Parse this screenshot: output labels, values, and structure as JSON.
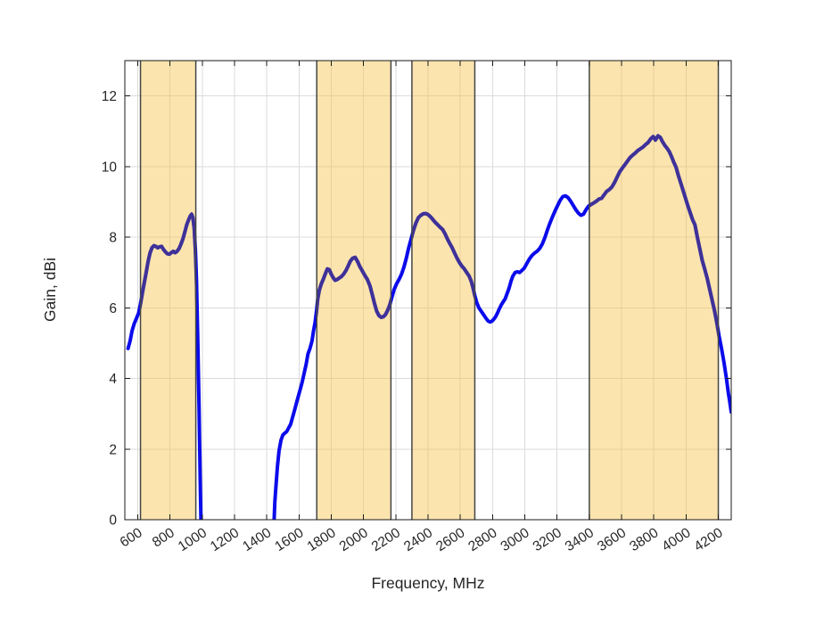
{
  "chart_data": {
    "type": "line",
    "title": "",
    "xlabel": "Frequency, MHz",
    "ylabel": "Gain, dBi",
    "xlim": [
      520,
      4280
    ],
    "ylim": [
      0,
      13
    ],
    "xticks": [
      600,
      800,
      1000,
      1200,
      1400,
      1600,
      1800,
      2000,
      2200,
      2400,
      2600,
      2800,
      3000,
      3200,
      3400,
      3600,
      3800,
      4000,
      4200
    ],
    "yticks": [
      0,
      2,
      4,
      6,
      8,
      10,
      12
    ],
    "grid": true,
    "legend": "none",
    "xtick_angle_deg": -33,
    "bands": [
      {
        "name": "band-617-960",
        "from": 617,
        "to": 960
      },
      {
        "name": "band-1710-2170",
        "from": 1710,
        "to": 2170
      },
      {
        "name": "band-2300-2690",
        "from": 2300,
        "to": 2690
      },
      {
        "name": "band-3400-4200",
        "from": 3400,
        "to": 4200
      }
    ],
    "series": [
      {
        "name": "gain",
        "points": [
          [
            540,
            4.85
          ],
          [
            552,
            5.05
          ],
          [
            565,
            5.35
          ],
          [
            578,
            5.55
          ],
          [
            592,
            5.7
          ],
          [
            605,
            5.85
          ],
          [
            617,
            6.1
          ],
          [
            628,
            6.4
          ],
          [
            640,
            6.7
          ],
          [
            652,
            7.0
          ],
          [
            664,
            7.3
          ],
          [
            676,
            7.55
          ],
          [
            688,
            7.7
          ],
          [
            700,
            7.76
          ],
          [
            712,
            7.74
          ],
          [
            724,
            7.7
          ],
          [
            736,
            7.73
          ],
          [
            748,
            7.74
          ],
          [
            760,
            7.65
          ],
          [
            772,
            7.58
          ],
          [
            784,
            7.53
          ],
          [
            796,
            7.52
          ],
          [
            808,
            7.56
          ],
          [
            820,
            7.6
          ],
          [
            832,
            7.56
          ],
          [
            844,
            7.6
          ],
          [
            856,
            7.68
          ],
          [
            868,
            7.8
          ],
          [
            880,
            7.95
          ],
          [
            892,
            8.15
          ],
          [
            904,
            8.35
          ],
          [
            916,
            8.5
          ],
          [
            926,
            8.6
          ],
          [
            934,
            8.65
          ],
          [
            942,
            8.55
          ],
          [
            950,
            8.25
          ],
          [
            958,
            7.6
          ],
          [
            964,
            6.8
          ],
          [
            972,
            5.2
          ],
          [
            980,
            3.2
          ],
          [
            988,
            1.0
          ],
          [
            994,
            -0.5
          ],
          [
            1000,
            -3
          ],
          [
            1436,
            -3
          ],
          [
            1444,
            -0.2
          ],
          [
            1450,
            0.5
          ],
          [
            1458,
            1.0
          ],
          [
            1466,
            1.5
          ],
          [
            1476,
            1.95
          ],
          [
            1488,
            2.25
          ],
          [
            1500,
            2.4
          ],
          [
            1512,
            2.45
          ],
          [
            1524,
            2.5
          ],
          [
            1536,
            2.6
          ],
          [
            1548,
            2.7
          ],
          [
            1560,
            2.9
          ],
          [
            1572,
            3.1
          ],
          [
            1584,
            3.3
          ],
          [
            1596,
            3.5
          ],
          [
            1608,
            3.7
          ],
          [
            1620,
            3.9
          ],
          [
            1632,
            4.15
          ],
          [
            1644,
            4.4
          ],
          [
            1656,
            4.7
          ],
          [
            1668,
            4.85
          ],
          [
            1680,
            5.05
          ],
          [
            1690,
            5.35
          ],
          [
            1700,
            5.6
          ],
          [
            1708,
            5.9
          ],
          [
            1716,
            6.25
          ],
          [
            1726,
            6.5
          ],
          [
            1738,
            6.68
          ],
          [
            1750,
            6.8
          ],
          [
            1762,
            6.95
          ],
          [
            1775,
            7.1
          ],
          [
            1788,
            7.08
          ],
          [
            1800,
            6.95
          ],
          [
            1812,
            6.85
          ],
          [
            1824,
            6.78
          ],
          [
            1836,
            6.8
          ],
          [
            1848,
            6.84
          ],
          [
            1862,
            6.88
          ],
          [
            1876,
            6.95
          ],
          [
            1890,
            7.05
          ],
          [
            1904,
            7.18
          ],
          [
            1918,
            7.32
          ],
          [
            1932,
            7.4
          ],
          [
            1948,
            7.43
          ],
          [
            1962,
            7.32
          ],
          [
            1976,
            7.18
          ],
          [
            1992,
            7.05
          ],
          [
            2008,
            6.92
          ],
          [
            2024,
            6.8
          ],
          [
            2040,
            6.62
          ],
          [
            2054,
            6.38
          ],
          [
            2068,
            6.12
          ],
          [
            2082,
            5.9
          ],
          [
            2096,
            5.78
          ],
          [
            2110,
            5.73
          ],
          [
            2124,
            5.75
          ],
          [
            2138,
            5.82
          ],
          [
            2152,
            5.95
          ],
          [
            2164,
            6.1
          ],
          [
            2176,
            6.3
          ],
          [
            2190,
            6.52
          ],
          [
            2205,
            6.68
          ],
          [
            2220,
            6.8
          ],
          [
            2235,
            6.95
          ],
          [
            2250,
            7.15
          ],
          [
            2265,
            7.4
          ],
          [
            2280,
            7.7
          ],
          [
            2295,
            7.95
          ],
          [
            2310,
            8.2
          ],
          [
            2325,
            8.4
          ],
          [
            2340,
            8.55
          ],
          [
            2355,
            8.62
          ],
          [
            2370,
            8.66
          ],
          [
            2385,
            8.67
          ],
          [
            2400,
            8.64
          ],
          [
            2415,
            8.58
          ],
          [
            2430,
            8.5
          ],
          [
            2445,
            8.42
          ],
          [
            2460,
            8.35
          ],
          [
            2475,
            8.28
          ],
          [
            2490,
            8.22
          ],
          [
            2505,
            8.1
          ],
          [
            2520,
            7.95
          ],
          [
            2535,
            7.82
          ],
          [
            2550,
            7.7
          ],
          [
            2565,
            7.55
          ],
          [
            2580,
            7.4
          ],
          [
            2595,
            7.28
          ],
          [
            2610,
            7.18
          ],
          [
            2625,
            7.1
          ],
          [
            2640,
            7.0
          ],
          [
            2655,
            6.9
          ],
          [
            2668,
            6.75
          ],
          [
            2680,
            6.55
          ],
          [
            2690,
            6.35
          ],
          [
            2702,
            6.15
          ],
          [
            2715,
            6.0
          ],
          [
            2730,
            5.9
          ],
          [
            2745,
            5.8
          ],
          [
            2760,
            5.7
          ],
          [
            2772,
            5.63
          ],
          [
            2784,
            5.6
          ],
          [
            2796,
            5.62
          ],
          [
            2808,
            5.68
          ],
          [
            2818,
            5.74
          ],
          [
            2830,
            5.85
          ],
          [
            2842,
            5.97
          ],
          [
            2854,
            6.08
          ],
          [
            2866,
            6.17
          ],
          [
            2878,
            6.25
          ],
          [
            2890,
            6.4
          ],
          [
            2902,
            6.55
          ],
          [
            2914,
            6.75
          ],
          [
            2926,
            6.9
          ],
          [
            2940,
            7.0
          ],
          [
            2954,
            7.02
          ],
          [
            2968,
            7.0
          ],
          [
            2982,
            7.06
          ],
          [
            2996,
            7.12
          ],
          [
            3012,
            7.25
          ],
          [
            3028,
            7.38
          ],
          [
            3044,
            7.48
          ],
          [
            3060,
            7.55
          ],
          [
            3076,
            7.6
          ],
          [
            3092,
            7.68
          ],
          [
            3108,
            7.8
          ],
          [
            3124,
            7.98
          ],
          [
            3140,
            8.2
          ],
          [
            3156,
            8.4
          ],
          [
            3172,
            8.58
          ],
          [
            3188,
            8.75
          ],
          [
            3204,
            8.9
          ],
          [
            3220,
            9.05
          ],
          [
            3236,
            9.15
          ],
          [
            3252,
            9.17
          ],
          [
            3268,
            9.12
          ],
          [
            3284,
            9.02
          ],
          [
            3300,
            8.9
          ],
          [
            3316,
            8.78
          ],
          [
            3332,
            8.68
          ],
          [
            3348,
            8.62
          ],
          [
            3364,
            8.65
          ],
          [
            3380,
            8.78
          ],
          [
            3396,
            8.88
          ],
          [
            3412,
            8.93
          ],
          [
            3428,
            8.97
          ],
          [
            3444,
            9.02
          ],
          [
            3460,
            9.08
          ],
          [
            3476,
            9.1
          ],
          [
            3492,
            9.2
          ],
          [
            3508,
            9.3
          ],
          [
            3524,
            9.35
          ],
          [
            3540,
            9.42
          ],
          [
            3556,
            9.55
          ],
          [
            3572,
            9.7
          ],
          [
            3588,
            9.85
          ],
          [
            3604,
            9.95
          ],
          [
            3620,
            10.05
          ],
          [
            3636,
            10.15
          ],
          [
            3652,
            10.25
          ],
          [
            3668,
            10.32
          ],
          [
            3684,
            10.38
          ],
          [
            3700,
            10.45
          ],
          [
            3716,
            10.5
          ],
          [
            3732,
            10.55
          ],
          [
            3748,
            10.62
          ],
          [
            3764,
            10.68
          ],
          [
            3780,
            10.78
          ],
          [
            3796,
            10.85
          ],
          [
            3810,
            10.75
          ],
          [
            3826,
            10.87
          ],
          [
            3840,
            10.83
          ],
          [
            3854,
            10.7
          ],
          [
            3868,
            10.6
          ],
          [
            3882,
            10.52
          ],
          [
            3896,
            10.42
          ],
          [
            3910,
            10.28
          ],
          [
            3924,
            10.12
          ],
          [
            3938,
            9.98
          ],
          [
            3952,
            9.75
          ],
          [
            3966,
            9.55
          ],
          [
            3980,
            9.35
          ],
          [
            3995,
            9.12
          ],
          [
            4010,
            8.9
          ],
          [
            4025,
            8.7
          ],
          [
            4040,
            8.5
          ],
          [
            4055,
            8.35
          ],
          [
            4070,
            8.0
          ],
          [
            4085,
            7.68
          ],
          [
            4100,
            7.35
          ],
          [
            4115,
            7.1
          ],
          [
            4130,
            6.85
          ],
          [
            4145,
            6.55
          ],
          [
            4160,
            6.25
          ],
          [
            4175,
            5.95
          ],
          [
            4190,
            5.6
          ],
          [
            4205,
            5.2
          ],
          [
            4220,
            4.85
          ],
          [
            4235,
            4.45
          ],
          [
            4250,
            4.0
          ],
          [
            4262,
            3.6
          ],
          [
            4272,
            3.3
          ],
          [
            4280,
            3.05
          ]
        ]
      }
    ],
    "colors": {
      "line": "#0B0BEB",
      "line_in_band": "#3E3199",
      "band_fill": "rgba(247,195,76,0.45)",
      "band_edge": "#454545",
      "grid": "#DBDBDB",
      "axis": "#1A1A1A",
      "tick_label": "#262626",
      "background": "#FFFFFF"
    }
  }
}
